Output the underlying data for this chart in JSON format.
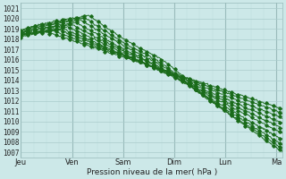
{
  "title": "Pression niveau de la mer( hPa )",
  "ylabel_values": [
    1007,
    1008,
    1009,
    1010,
    1011,
    1012,
    1013,
    1014,
    1015,
    1016,
    1017,
    1018,
    1019,
    1020,
    1021
  ],
  "ylim": [
    1006.5,
    1021.5
  ],
  "xlim": [
    0,
    123
  ],
  "x_tick_positions": [
    0,
    24,
    48,
    72,
    96,
    120
  ],
  "x_tick_labels": [
    "Jeu",
    "Ven",
    "Sam",
    "Dim",
    "Lun",
    "Ma"
  ],
  "bg_color": "#cce8e8",
  "grid_major_color": "#aacccc",
  "grid_minor_color": "#bbdddd",
  "line_color": "#1a6b1a",
  "marker_size": 1.8,
  "line_width": 0.7,
  "title_fontsize": 6.5,
  "tick_fontsize": 5.5,
  "xtick_fontsize": 6.0
}
